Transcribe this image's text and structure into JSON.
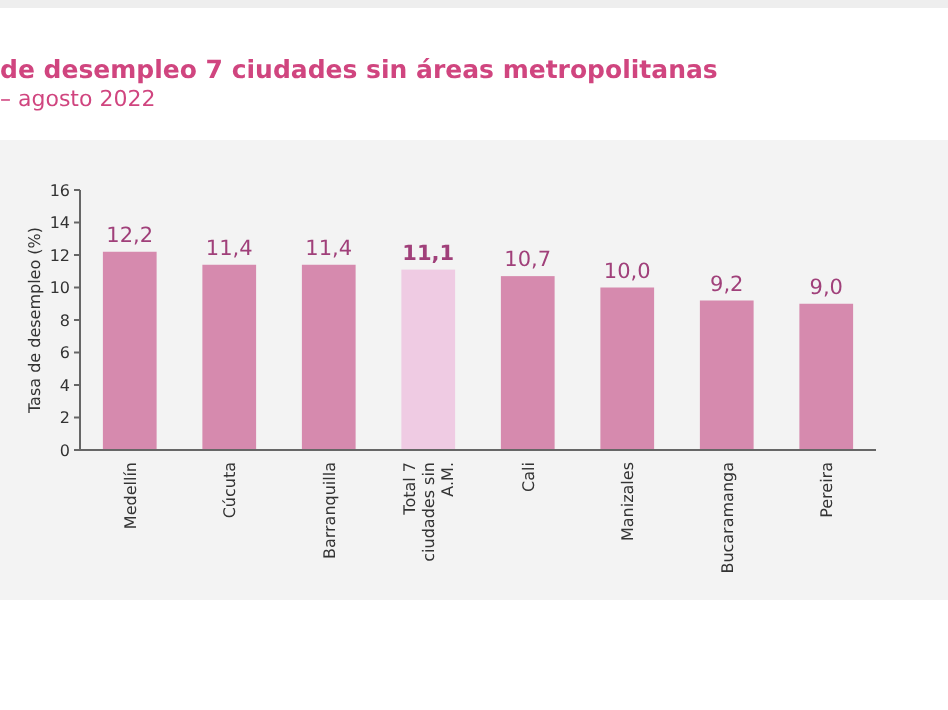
{
  "chart_data": {
    "type": "bar",
    "title": "de desempleo 7 ciudades sin áreas metropolitanas",
    "subtitle": "– agosto 2022",
    "ylabel": "Tasa de desempleo (%)",
    "categories": [
      "Medellín",
      "Cúcuta",
      "Barranquilla",
      "Total 7 ciudades sin A.M.",
      "Cali",
      "Manizales",
      "Bucaramanga",
      "Pereira"
    ],
    "values": [
      12.2,
      11.4,
      11.4,
      11.1,
      10.7,
      10.0,
      9.2,
      9.0
    ],
    "colors": [
      "#d68aae",
      "#d68aae",
      "#d68aae",
      "#efcbe3",
      "#d68aae",
      "#d68aae",
      "#d68aae",
      "#d68aae"
    ],
    "value_labels": [
      "12,2",
      "11,4",
      "11,4",
      "11,1",
      "10,7",
      "10,0",
      "9,2",
      "9,0"
    ],
    "ylim": [
      0,
      16
    ],
    "yticks": [
      0,
      2,
      4,
      6,
      8,
      10,
      12,
      14,
      16
    ],
    "grid": false
  }
}
